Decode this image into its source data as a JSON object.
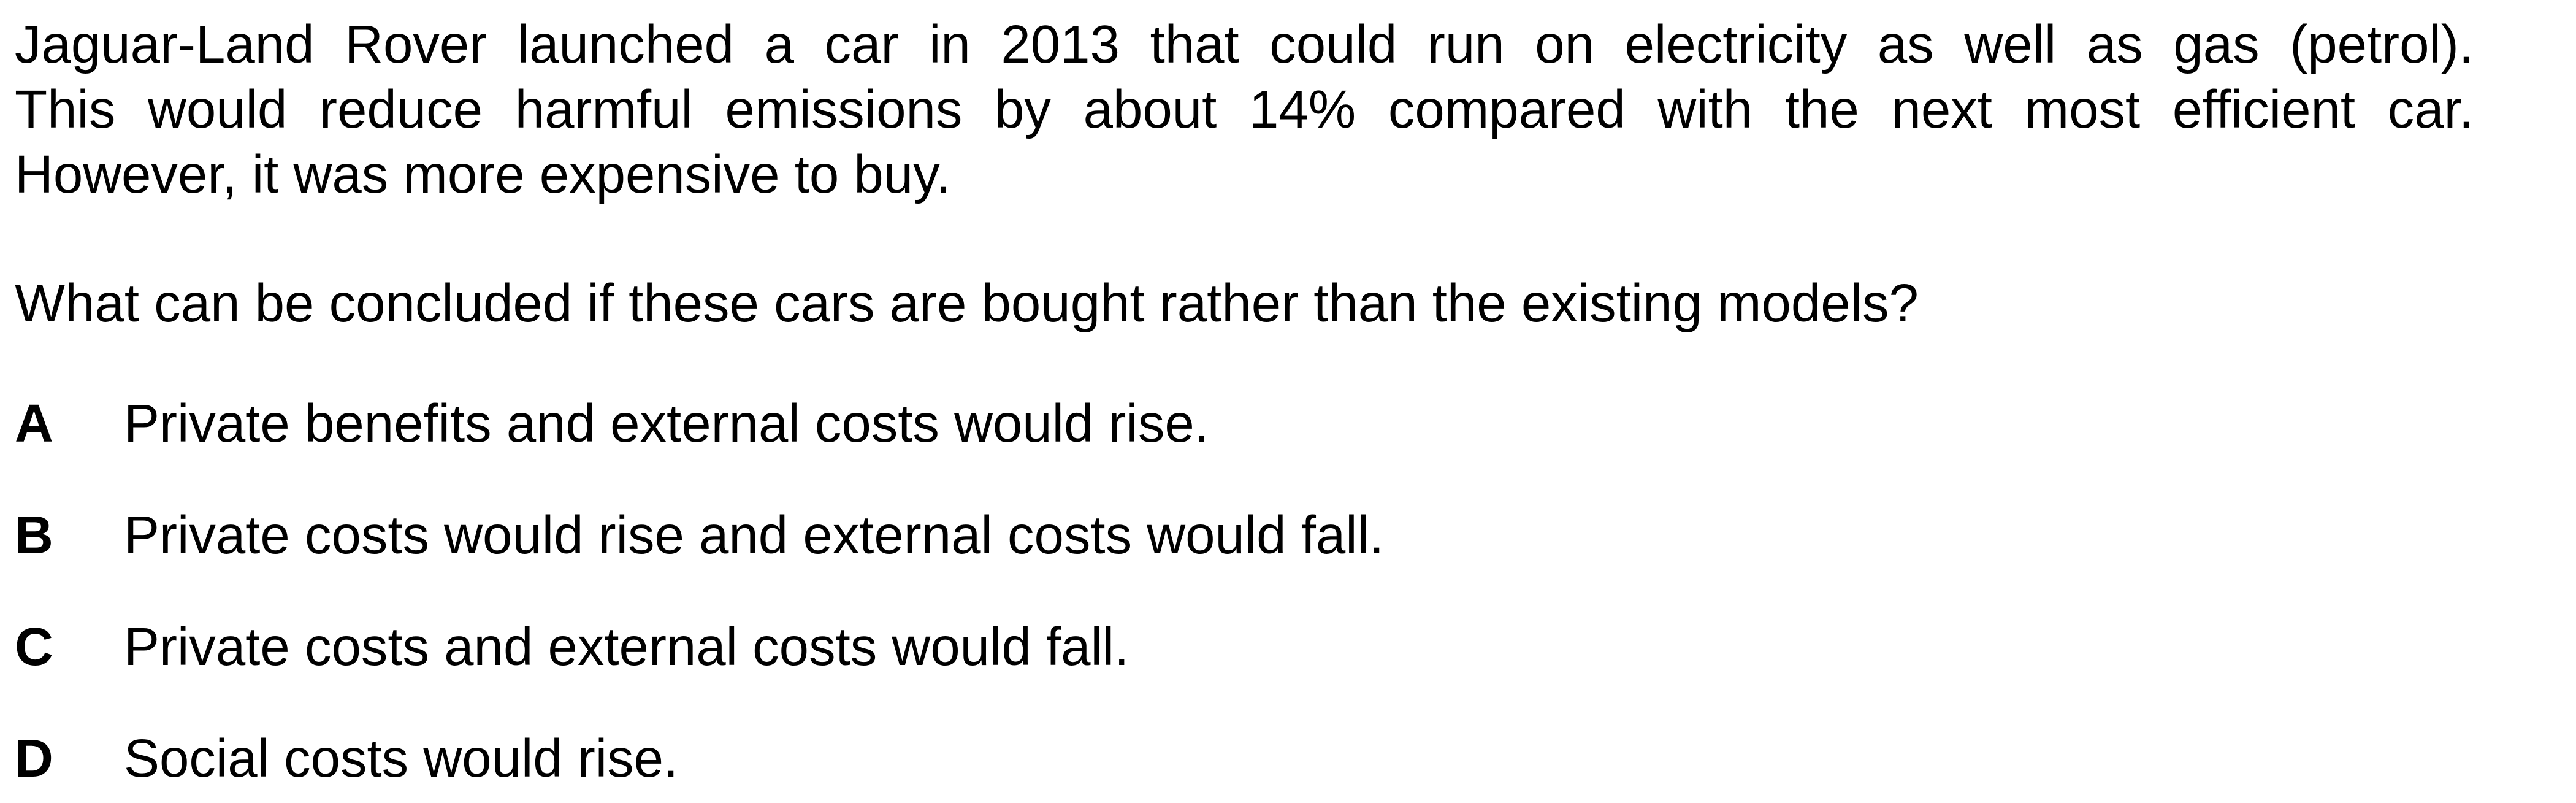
{
  "stem": {
    "lines": [
      "Jaguar-Land Rover launched a car in 2013 that could run on electricity as well as gas (petrol).",
      "This would reduce harmful emissions by about 14% compared with the next most efficient car.",
      "However, it was more expensive to buy."
    ]
  },
  "question": "What can be concluded if these cars are bought rather than the existing models?",
  "options": [
    {
      "letter": "A",
      "text": "Private benefits and external costs would rise."
    },
    {
      "letter": "B",
      "text": "Private costs would rise and external costs would fall."
    },
    {
      "letter": "C",
      "text": "Private costs and external costs would fall."
    },
    {
      "letter": "D",
      "text": "Social costs would rise."
    }
  ]
}
